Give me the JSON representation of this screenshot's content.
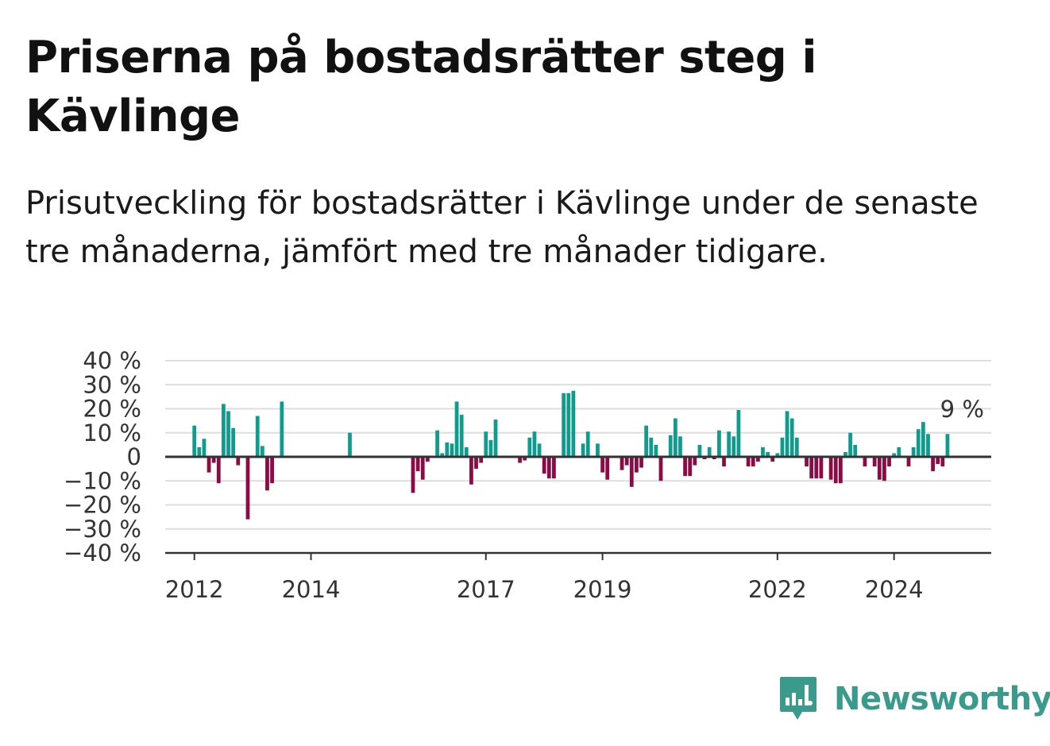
{
  "header": {
    "title": "Priserna på bostadsrätter steg i Kävlinge",
    "subtitle": "Prisutveckling för bostadsrätter i Kävlinge under de senaste tre månaderna, jämfört med tre månader tidigare."
  },
  "brand": {
    "name": "Newsworthy",
    "icon": "newsworthy-chart-icon",
    "color": "#3a9a8c"
  },
  "colors": {
    "positive": "#0f9c8f",
    "negative": "#8e0a45",
    "grid": "#dddddd",
    "axis": "#333333"
  },
  "chart_data": {
    "type": "bar",
    "title": "",
    "xlabel": "",
    "ylabel": "",
    "ylim": [
      -40,
      40
    ],
    "yticks": [
      40,
      30,
      20,
      10,
      0,
      -10,
      -20,
      -30,
      -40
    ],
    "ytick_labels": [
      "40 %",
      "30 %",
      "20 %",
      "10 %",
      "0",
      "−10 %",
      "−20 %",
      "−30 %",
      "−40 %"
    ],
    "xticks": [
      2012,
      2014,
      2017,
      2019,
      2022,
      2024
    ],
    "x_domain": [
      "2011-07",
      "2025-09"
    ],
    "grid": true,
    "annotation": {
      "text": "9 %",
      "date": "2025-03"
    },
    "series": [
      {
        "values": [
          [
            "2012-01",
            13
          ],
          [
            "2012-02",
            4
          ],
          [
            "2012-03",
            7.5
          ],
          [
            "2012-04",
            -6.5
          ],
          [
            "2012-05",
            -2.5
          ],
          [
            "2012-06",
            -11
          ],
          [
            "2012-07",
            22
          ],
          [
            "2012-08",
            19
          ],
          [
            "2012-09",
            12
          ],
          [
            "2012-10",
            -3.5
          ],
          [
            "2012-12",
            -26
          ],
          [
            "2013-02",
            17
          ],
          [
            "2013-03",
            4.5
          ],
          [
            "2013-04",
            -14
          ],
          [
            "2013-05",
            -11
          ],
          [
            "2013-07",
            23
          ],
          [
            "2014-09",
            10
          ],
          [
            "2015-10",
            -15
          ],
          [
            "2015-11",
            -6
          ],
          [
            "2015-12",
            -9.5
          ],
          [
            "2016-01",
            -2
          ],
          [
            "2016-03",
            11
          ],
          [
            "2016-04",
            1.5
          ],
          [
            "2016-05",
            6
          ],
          [
            "2016-06",
            5.5
          ],
          [
            "2016-07",
            23
          ],
          [
            "2016-08",
            17.5
          ],
          [
            "2016-09",
            4
          ],
          [
            "2016-10",
            -11.5
          ],
          [
            "2016-11",
            -5
          ],
          [
            "2016-12",
            -2.5
          ],
          [
            "2017-01",
            10.5
          ],
          [
            "2017-02",
            7
          ],
          [
            "2017-03",
            15.5
          ],
          [
            "2017-06",
            0.5
          ],
          [
            "2017-08",
            -2.5
          ],
          [
            "2017-09",
            -1.5
          ],
          [
            "2017-10",
            8
          ],
          [
            "2017-11",
            10.5
          ],
          [
            "2017-12",
            5.5
          ],
          [
            "2018-01",
            -7
          ],
          [
            "2018-02",
            -9
          ],
          [
            "2018-03",
            -9
          ],
          [
            "2018-05",
            26.5
          ],
          [
            "2018-06",
            26.5
          ],
          [
            "2018-07",
            27.5
          ],
          [
            "2018-09",
            5.5
          ],
          [
            "2018-10",
            10.5
          ],
          [
            "2018-12",
            5.5
          ],
          [
            "2019-01",
            -6.5
          ],
          [
            "2019-02",
            -9.5
          ],
          [
            "2019-04",
            -0.5
          ],
          [
            "2019-05",
            -5.5
          ],
          [
            "2019-06",
            -3.5
          ],
          [
            "2019-07",
            -12.5
          ],
          [
            "2019-08",
            -6.5
          ],
          [
            "2019-09",
            -4.5
          ],
          [
            "2019-10",
            13
          ],
          [
            "2019-11",
            8
          ],
          [
            "2019-12",
            5
          ],
          [
            "2020-01",
            -10
          ],
          [
            "2020-03",
            9
          ],
          [
            "2020-04",
            16
          ],
          [
            "2020-05",
            8.5
          ],
          [
            "2020-06",
            -8
          ],
          [
            "2020-07",
            -8
          ],
          [
            "2020-08",
            -3.5
          ],
          [
            "2020-09",
            5
          ],
          [
            "2020-10",
            -1
          ],
          [
            "2020-11",
            4
          ],
          [
            "2020-12",
            -1
          ],
          [
            "2021-01",
            11
          ],
          [
            "2021-02",
            -4
          ],
          [
            "2021-03",
            10.5
          ],
          [
            "2021-04",
            8.5
          ],
          [
            "2021-05",
            19.5
          ],
          [
            "2021-06",
            0.5
          ],
          [
            "2021-07",
            -4
          ],
          [
            "2021-08",
            -4
          ],
          [
            "2021-09",
            -2
          ],
          [
            "2021-10",
            4
          ],
          [
            "2021-11",
            2
          ],
          [
            "2021-12",
            -2
          ],
          [
            "2022-01",
            1.5
          ],
          [
            "2022-02",
            8
          ],
          [
            "2022-03",
            19
          ],
          [
            "2022-04",
            16
          ],
          [
            "2022-05",
            8
          ],
          [
            "2022-06",
            0.5
          ],
          [
            "2022-07",
            -4
          ],
          [
            "2022-08",
            -9
          ],
          [
            "2022-09",
            -9
          ],
          [
            "2022-10",
            -9
          ],
          [
            "2022-11",
            0.5
          ],
          [
            "2022-12",
            -9.5
          ],
          [
            "2023-01",
            -11
          ],
          [
            "2023-02",
            -11
          ],
          [
            "2023-03",
            2
          ],
          [
            "2023-04",
            10
          ],
          [
            "2023-05",
            5
          ],
          [
            "2023-07",
            -4
          ],
          [
            "2023-08",
            0.5
          ],
          [
            "2023-09",
            -4
          ],
          [
            "2023-10",
            -9.5
          ],
          [
            "2023-11",
            -10
          ],
          [
            "2023-12",
            -4
          ],
          [
            "2024-01",
            1.5
          ],
          [
            "2024-02",
            4
          ],
          [
            "2024-04",
            -4
          ],
          [
            "2024-05",
            4
          ],
          [
            "2024-06",
            11.5
          ],
          [
            "2024-07",
            14.5
          ],
          [
            "2024-08",
            9.5
          ],
          [
            "2024-09",
            -6
          ],
          [
            "2024-10",
            -3
          ],
          [
            "2024-11",
            -4
          ],
          [
            "2024-12",
            9.5
          ]
        ]
      }
    ]
  }
}
